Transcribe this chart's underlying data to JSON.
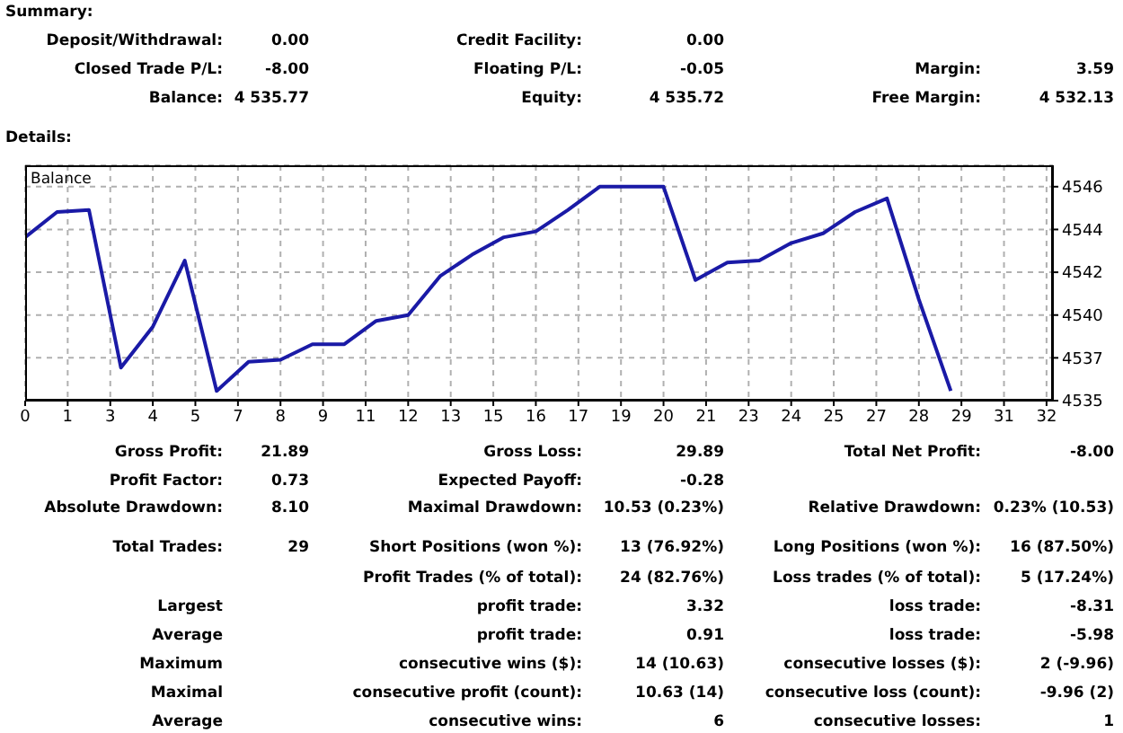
{
  "chart_data": [
    {
      "type": "other",
      "title": "Summary:",
      "annotations": [
        "Deposit/Withdrawal:",
        "0.00",
        "Credit Facility:",
        "0.00",
        "Closed Trade P/L:",
        "-8.00",
        "Floating P/L:",
        "-0.05",
        "Margin:",
        "3.59",
        "Balance:",
        "4 535.77",
        "Equity:",
        "4 535.72",
        "Free Margin:",
        "4 532.13"
      ]
    },
    {
      "type": "line",
      "title": "Details:",
      "annotations": [
        "Balance"
      ],
      "marker": "none",
      "grid": true,
      "x": [
        0,
        1,
        2,
        3,
        4,
        5,
        6,
        7,
        8,
        9,
        10,
        11,
        12,
        13,
        14,
        15,
        16,
        17,
        18,
        19,
        20,
        21,
        22,
        23,
        24,
        25,
        26,
        27,
        28,
        29
      ],
      "series": [
        {
          "color": "#1a1aa6",
          "values": [
            4543.7,
            4545.0,
            4545.1,
            4537.0,
            4539.1,
            4542.5,
            4535.8,
            4537.3,
            4537.4,
            4538.2,
            4538.2,
            4539.4,
            4539.7,
            4541.7,
            4542.8,
            4543.7,
            4544.0,
            4545.1,
            4546.3,
            4546.3,
            4546.3,
            4541.5,
            4542.4,
            4542.5,
            4543.4,
            4543.9,
            4545.0,
            4545.7,
            4540.5,
            4535.8
          ]
        }
      ],
      "xlim": [
        0,
        32.2
      ],
      "ylim": [
        4535.3,
        4547.4
      ],
      "xticks": [
        0,
        {
          "value": 1.333,
          "label": "1"
        },
        {
          "value": 2.667,
          "label": "3"
        },
        4,
        {
          "value": 5.333,
          "label": "5"
        },
        {
          "value": 6.667,
          "label": "7"
        },
        8,
        {
          "value": 9.333,
          "label": "9"
        },
        {
          "value": 10.667,
          "label": "11"
        },
        12,
        {
          "value": 13.333,
          "label": "13"
        },
        {
          "value": 14.667,
          "label": "15"
        },
        16,
        {
          "value": 17.333,
          "label": "17"
        },
        {
          "value": 18.667,
          "label": "19"
        },
        20,
        {
          "value": 21.333,
          "label": "21"
        },
        {
          "value": 22.667,
          "label": "23"
        },
        24,
        {
          "value": 25.333,
          "label": "25"
        },
        {
          "value": 26.667,
          "label": "27"
        },
        28,
        {
          "value": 29.333,
          "label": "29"
        },
        {
          "value": 30.667,
          "label": "31"
        },
        32
      ],
      "yticks": [
        {
          "value": 4535.3,
          "label": "4535"
        },
        {
          "value": 4537.5,
          "label": "4537"
        },
        {
          "value": 4539.7,
          "label": "4540"
        },
        {
          "value": 4541.9,
          "label": "4542"
        },
        {
          "value": 4544.1,
          "label": "4544"
        },
        {
          "value": 4546.3,
          "label": "4546"
        }
      ]
    },
    {
      "type": "other",
      "annotations": [
        "Gross Profit:",
        "21.89",
        "Gross Loss:",
        "29.89",
        "Total Net Profit:",
        "-8.00",
        "Profit Factor:",
        "0.73",
        "Expected Payoff:",
        "-0.28",
        "Absolute Drawdown:",
        "8.10",
        "Maximal Drawdown:",
        "10.53 (0.23%)",
        "Relative Drawdown:",
        "0.23% (10.53)",
        "Total Trades:",
        "29",
        "Short Positions (won %):",
        "13 (76.92%)",
        "Long Positions (won %):",
        "16 (87.50%)",
        "Profit Trades (% of total):",
        "24 (82.76%)",
        "Loss trades (% of total):",
        "5 (17.24%)",
        "Largest",
        "profit trade:",
        "3.32",
        "loss trade:",
        "-8.31",
        "Average",
        "profit trade:",
        "0.91",
        "loss trade:",
        "-5.98",
        "Maximum",
        "consecutive wins ($):",
        "14 (10.63)",
        "consecutive losses ($):",
        "2 (-9.96)",
        "Maximal",
        "consecutive profit (count):",
        "10.63 (14)",
        "consecutive loss (count):",
        "-9.96 (2)",
        "Average",
        "consecutive wins:",
        "6",
        "consecutive losses:",
        "1"
      ]
    }
  ]
}
